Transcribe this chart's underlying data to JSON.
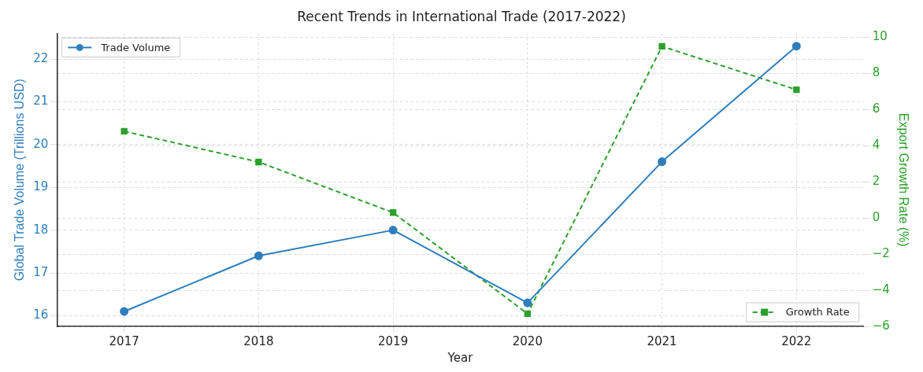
{
  "chart_data": {
    "type": "line",
    "title": "Recent Trends in International Trade (2017-2022)",
    "xlabel": "Year",
    "ylabel": "Global Trade Volume (Trillions USD)",
    "y2label": "Export Growth Rate (%)",
    "categories": [
      "2017",
      "2018",
      "2019",
      "2020",
      "2021",
      "2022"
    ],
    "series": [
      {
        "name": "Trade Volume",
        "color": "#2f7ebc",
        "values": [
          16.1,
          17.4,
          18.0,
          16.3,
          19.6,
          22.3
        ],
        "marker": "circle",
        "line_style": "solid"
      },
      {
        "name": "Growth Rate",
        "color": "#2ca02c",
        "values": [
          4.8,
          3.1,
          0.3,
          -5.3,
          9.5,
          7.1
        ],
        "axis": "y2",
        "marker": "square",
        "line_style": "dashed"
      }
    ],
    "ylim": [
      15.75,
      22.6
    ],
    "yticks": [
      16,
      17,
      18,
      19,
      20,
      21,
      22
    ],
    "y2lim": [
      -6,
      10.22
    ],
    "y2ticks": [
      -6,
      -4,
      -2,
      0,
      2,
      4,
      6,
      8,
      10
    ],
    "grid": true,
    "legend": "top"
  }
}
